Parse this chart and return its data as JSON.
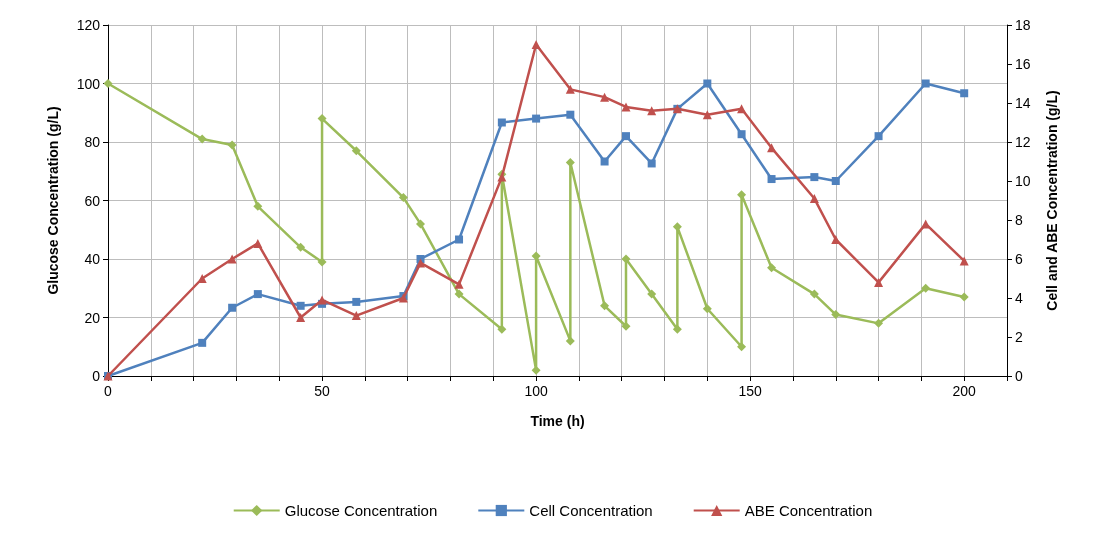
{
  "chart_data": {
    "type": "line",
    "xlabel": "Time (h)",
    "ylabel": "Glucose Concentration (g/L)",
    "y2label": "Cell and ABE Concentration (g/L)",
    "xlim": [
      0,
      210
    ],
    "xticks": [
      0,
      {
        "value": 10,
        "label": null
      },
      {
        "value": 20,
        "label": null
      },
      {
        "value": 30,
        "label": null
      },
      {
        "value": 40,
        "label": null
      },
      50,
      {
        "value": 60,
        "label": null
      },
      {
        "value": 70,
        "label": null
      },
      {
        "value": 80,
        "label": null
      },
      {
        "value": 90,
        "label": null
      },
      100,
      {
        "value": 110,
        "label": null
      },
      {
        "value": 120,
        "label": null
      },
      {
        "value": 130,
        "label": null
      },
      {
        "value": 140,
        "label": null
      },
      150,
      {
        "value": 160,
        "label": null
      },
      {
        "value": 170,
        "label": null
      },
      {
        "value": 180,
        "label": null
      },
      {
        "value": 190,
        "label": null
      },
      200,
      {
        "value": 210,
        "label": null
      }
    ],
    "ylim": [
      0,
      120
    ],
    "yticks": [
      0,
      20,
      40,
      60,
      80,
      100,
      120
    ],
    "y2lim": [
      0,
      18
    ],
    "y2ticks": [
      0,
      2,
      4,
      6,
      8,
      10,
      12,
      14,
      16,
      18
    ],
    "grid": true,
    "legend": "bottom",
    "line_style": "solid",
    "series": [
      {
        "name": "Glucose Concentration",
        "color": "#9bbb59",
        "marker": "diamond",
        "x": [
          0,
          22,
          29,
          35,
          45,
          50,
          50,
          58,
          69,
          73,
          82,
          92,
          92,
          100,
          100,
          108,
          108,
          116,
          121,
          121,
          127,
          133,
          133,
          140,
          148,
          148,
          155,
          165,
          170,
          180,
          191,
          200
        ],
        "values": [
          100,
          81,
          79,
          58,
          44,
          39,
          88,
          77,
          61,
          52,
          28,
          16,
          69,
          2,
          41,
          12,
          73,
          24,
          17,
          40,
          28,
          16,
          51,
          23,
          10,
          62,
          37,
          28,
          21,
          18,
          30,
          27
        ]
      },
      {
        "name": "Cell Concentration",
        "color": "#4f81bd",
        "marker": "square",
        "axis": "y2",
        "x": [
          0,
          22,
          29,
          35,
          45,
          50,
          58,
          69,
          73,
          82,
          92,
          100,
          108,
          116,
          121,
          127,
          133,
          140,
          148,
          155,
          165,
          170,
          180,
          191,
          200
        ],
        "values": [
          0,
          1.7,
          3.5,
          4.2,
          3.6,
          3.7,
          3.8,
          4.1,
          6.0,
          7.0,
          13.0,
          13.2,
          13.4,
          11.0,
          12.3,
          10.9,
          13.7,
          15.0,
          12.4,
          10.1,
          10.2,
          10.0,
          12.3,
          15.0,
          14.5
        ]
      },
      {
        "name": "ABE Concentration",
        "color": "#c0504d",
        "marker": "triangle",
        "axis": "y2",
        "x": [
          0,
          22,
          29,
          35,
          45,
          50,
          58,
          69,
          73,
          82,
          92,
          100,
          108,
          116,
          121,
          127,
          133,
          140,
          148,
          155,
          165,
          170,
          180,
          191,
          200
        ],
        "values": [
          0,
          5.0,
          6.0,
          6.8,
          3.0,
          3.9,
          3.1,
          4.0,
          5.8,
          4.7,
          10.2,
          17,
          14.7,
          14.3,
          13.8,
          13.6,
          13.7,
          13.4,
          13.7,
          11.7,
          9.1,
          7.0,
          4.8,
          7.8,
          5.9
        ]
      }
    ]
  }
}
